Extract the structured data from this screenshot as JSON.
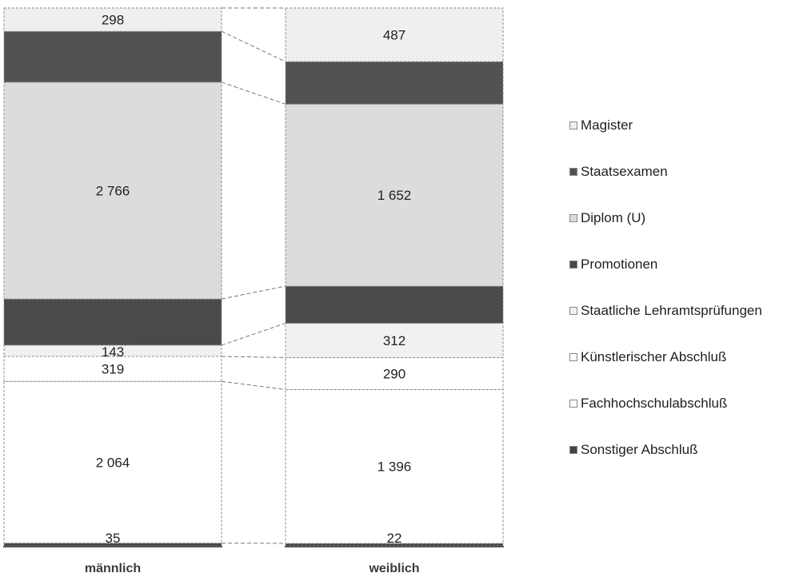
{
  "chart_data": {
    "type": "bar",
    "stacked": true,
    "normalized_100_percent": true,
    "categories": [
      "männlich",
      "weiblich"
    ],
    "series": [
      {
        "name": "Sonstiger Abschluß",
        "values": [
          35,
          22
        ],
        "color": "#444444",
        "labels": [
          "35",
          "22"
        ]
      },
      {
        "name": "Fachhochschulabschluß",
        "values": [
          2064,
          1396
        ],
        "color": "#ffffff",
        "labels": [
          "2 064",
          "1 396"
        ]
      },
      {
        "name": "Künstlerischer Abschluß",
        "values": [
          319,
          290
        ],
        "color": "#ffffff",
        "labels": [
          "319",
          "290"
        ]
      },
      {
        "name": "Staatliche Lehramtsprüfungen",
        "values": [
          143,
          312
        ],
        "color": "#f1f1f1",
        "labels": [
          "143",
          "312"
        ]
      },
      {
        "name": "Promotionen",
        "values": [
          590,
          336
        ],
        "color": "#4a4a4a",
        "labels": [
          "",
          ""
        ]
      },
      {
        "name": "Diplom (U)",
        "values": [
          2766,
          1652
        ],
        "color": "#dcdcdc",
        "labels": [
          "2 766",
          "1 652"
        ]
      },
      {
        "name": "Staatsexamen",
        "values": [
          650,
          385
        ],
        "color": "#525252",
        "labels": [
          "",
          ""
        ]
      },
      {
        "name": "Magister",
        "values": [
          298,
          487
        ],
        "color": "#efefef",
        "labels": [
          "298",
          "487"
        ]
      }
    ],
    "legend_order": [
      "Magister",
      "Staatsexamen",
      "Diplom (U)",
      "Promotionen",
      "Staatliche Lehramtsprüfungen",
      "Künstlerischer Abschluß",
      "Fachhochschulabschluß",
      "Sonstiger Abschluß"
    ],
    "legend_position": "right",
    "grid": false
  }
}
